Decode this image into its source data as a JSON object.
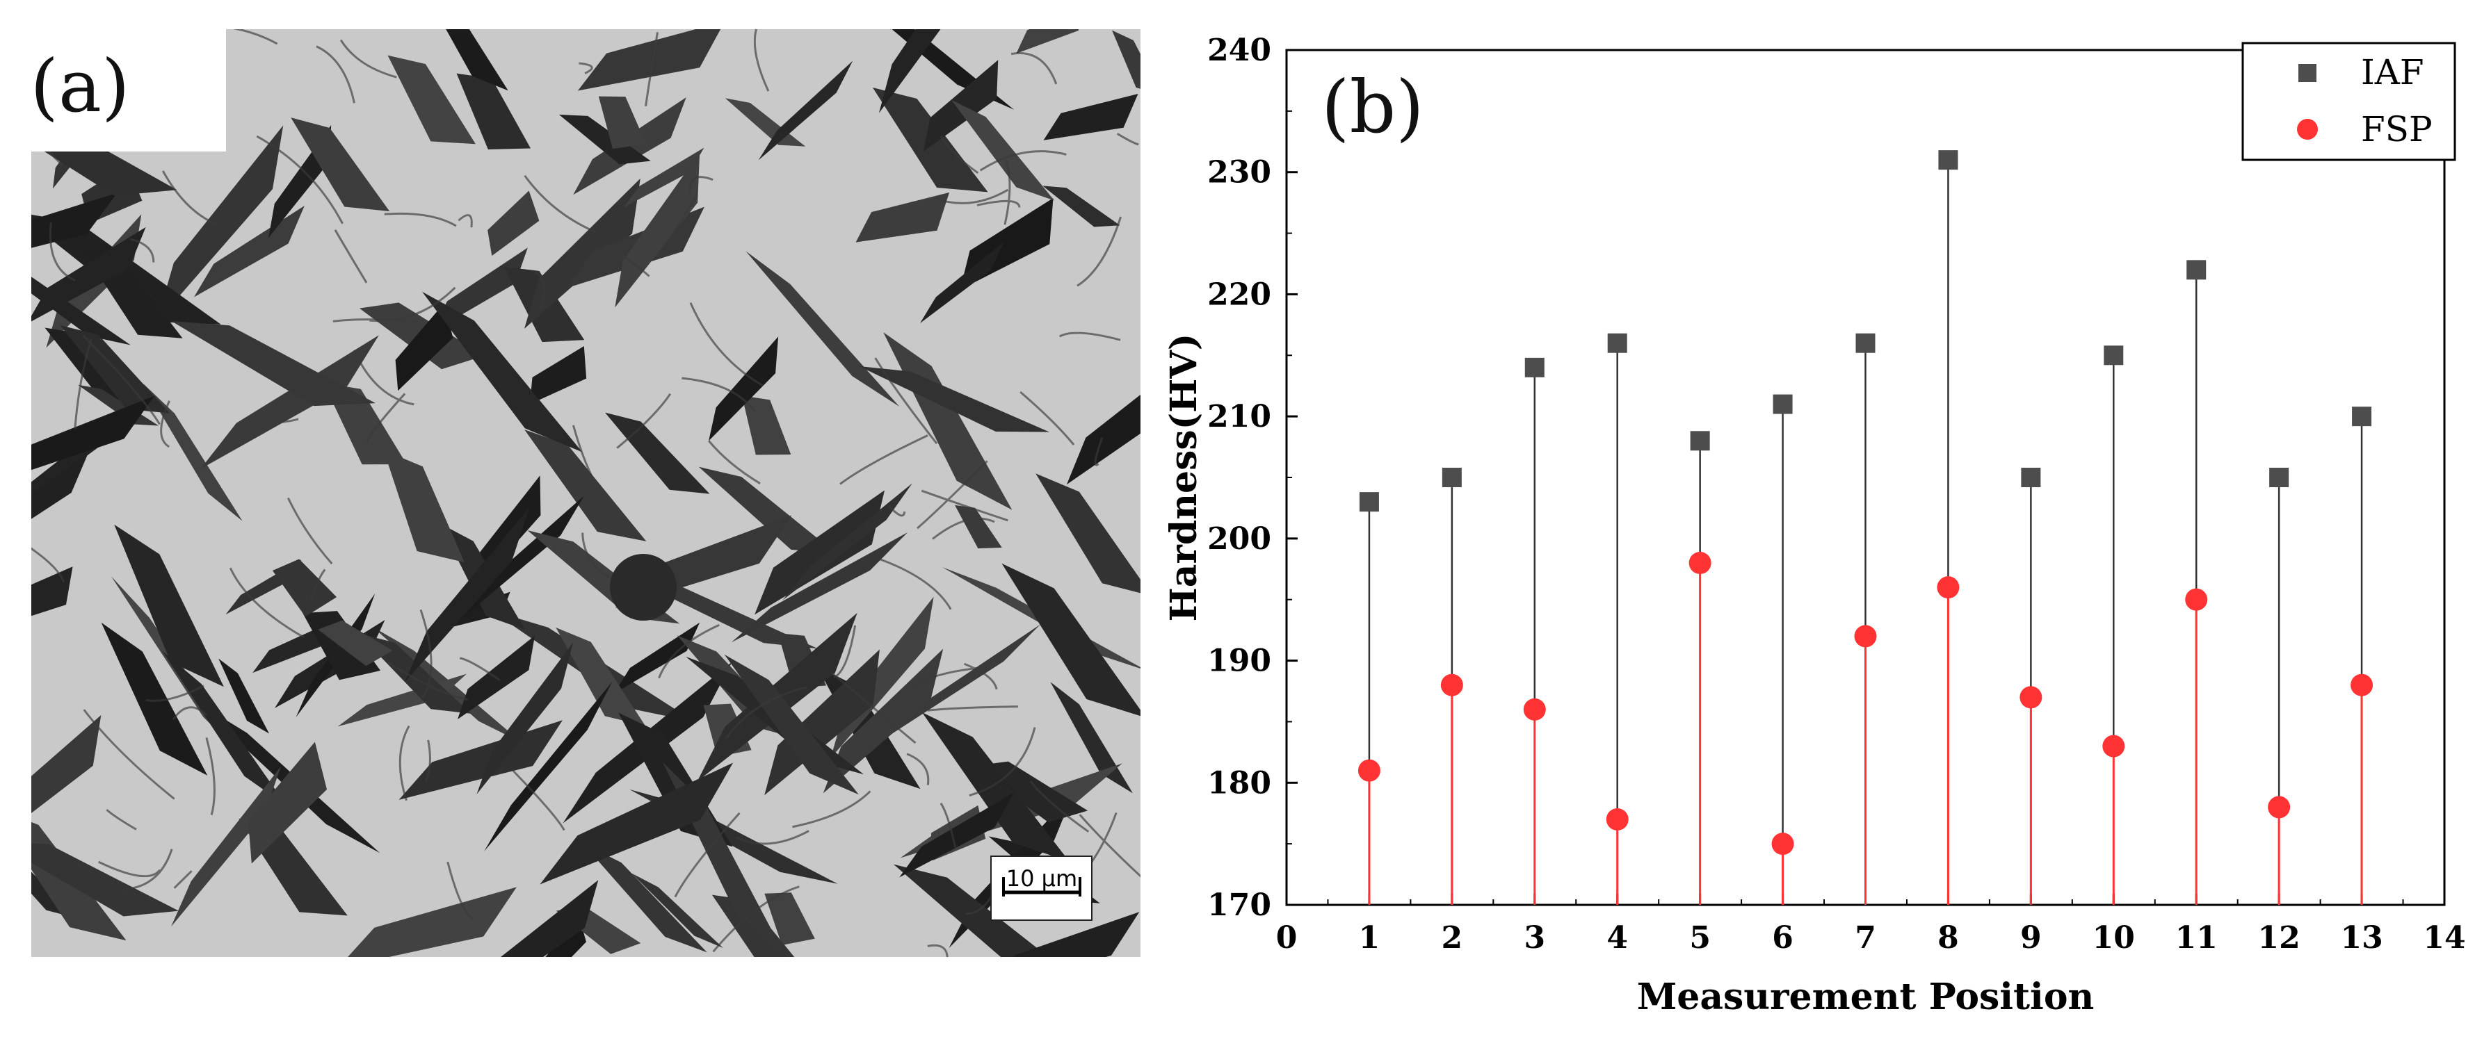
{
  "panel_a": {
    "label": "(a)",
    "scale_bar_text": "10 µm"
  },
  "chart_data": {
    "type": "scatter",
    "panel_label": "(b)",
    "title": "",
    "xlabel": "Measurement Position",
    "ylabel": "Hardness(HV)",
    "xlim": [
      0,
      14
    ],
    "ylim": [
      170,
      240
    ],
    "xticks": [
      0,
      1,
      2,
      3,
      4,
      5,
      6,
      7,
      8,
      9,
      10,
      11,
      12,
      13,
      14
    ],
    "yticks": [
      170,
      180,
      190,
      200,
      210,
      220,
      230,
      240
    ],
    "grid": false,
    "legend_position": "top-right",
    "x": [
      1,
      2,
      3,
      4,
      5,
      6,
      7,
      8,
      9,
      10,
      11,
      12,
      13
    ],
    "series": [
      {
        "name": "IAF",
        "marker": "square",
        "color": "#4d4d4d",
        "values": [
          203,
          205,
          214,
          216,
          208,
          211,
          216,
          231,
          205,
          215,
          222,
          205,
          210
        ]
      },
      {
        "name": "FSP",
        "marker": "circle",
        "color": "#ff3333",
        "values": [
          181,
          188,
          186,
          177,
          198,
          175,
          192,
          196,
          187,
          183,
          195,
          178,
          188
        ]
      }
    ],
    "drop_lines": true
  }
}
